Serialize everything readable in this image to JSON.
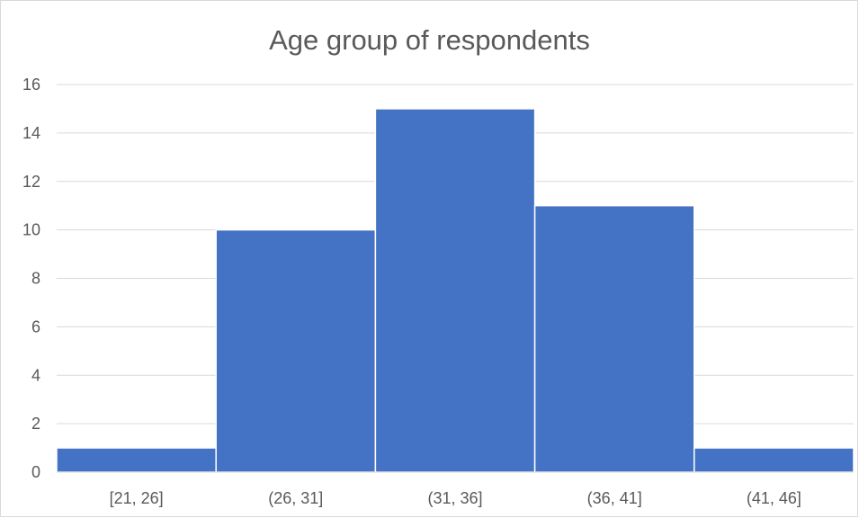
{
  "chart_data": {
    "type": "bar",
    "title": "Age group of respondents",
    "xlabel": "",
    "ylabel": "",
    "categories": [
      "[21, 26]",
      "(26, 31]",
      "(31, 36]",
      "(36, 41]",
      "(41, 46]"
    ],
    "values": [
      1,
      10,
      15,
      11,
      1
    ],
    "ylim": [
      0,
      16
    ],
    "yticks": [
      0,
      2,
      4,
      6,
      8,
      10,
      12,
      14,
      16
    ],
    "grid": true,
    "legend": "none",
    "bar_color": "#4472C4"
  }
}
